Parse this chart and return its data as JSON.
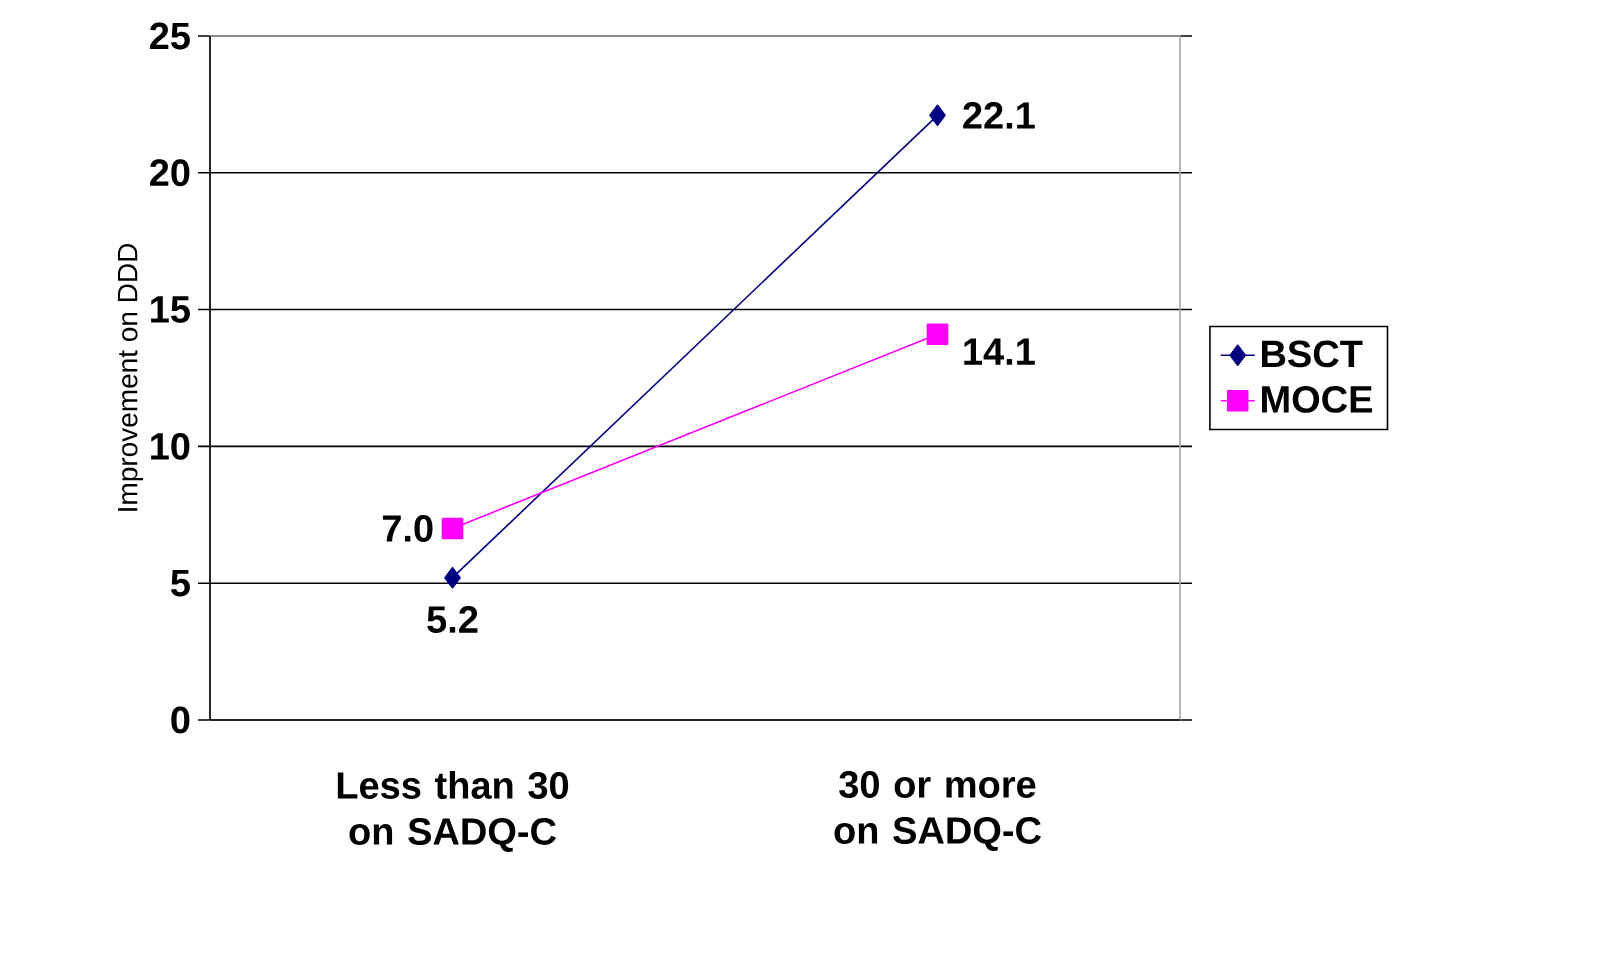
{
  "chart_data": {
    "type": "line",
    "ylabel": "Improvement on DDD",
    "categories": [
      "Less than 30 on SADQ-C",
      "30 or more on SADQ-C"
    ],
    "series": [
      {
        "name": "BSCT",
        "color": "#000080",
        "marker": "diamond",
        "values": [
          5.2,
          22.1
        ],
        "value_labels": [
          "5.2",
          "22.1"
        ]
      },
      {
        "name": "MOCE",
        "color": "#ff00ff",
        "marker": "square",
        "values": [
          7.0,
          14.1
        ],
        "value_labels": [
          "7.0",
          "14.1"
        ]
      }
    ],
    "ylim": [
      0,
      25
    ],
    "yticks": [
      0,
      5,
      10,
      15,
      20,
      25
    ],
    "grid": "y",
    "legend": "right",
    "line_style": "solid"
  }
}
